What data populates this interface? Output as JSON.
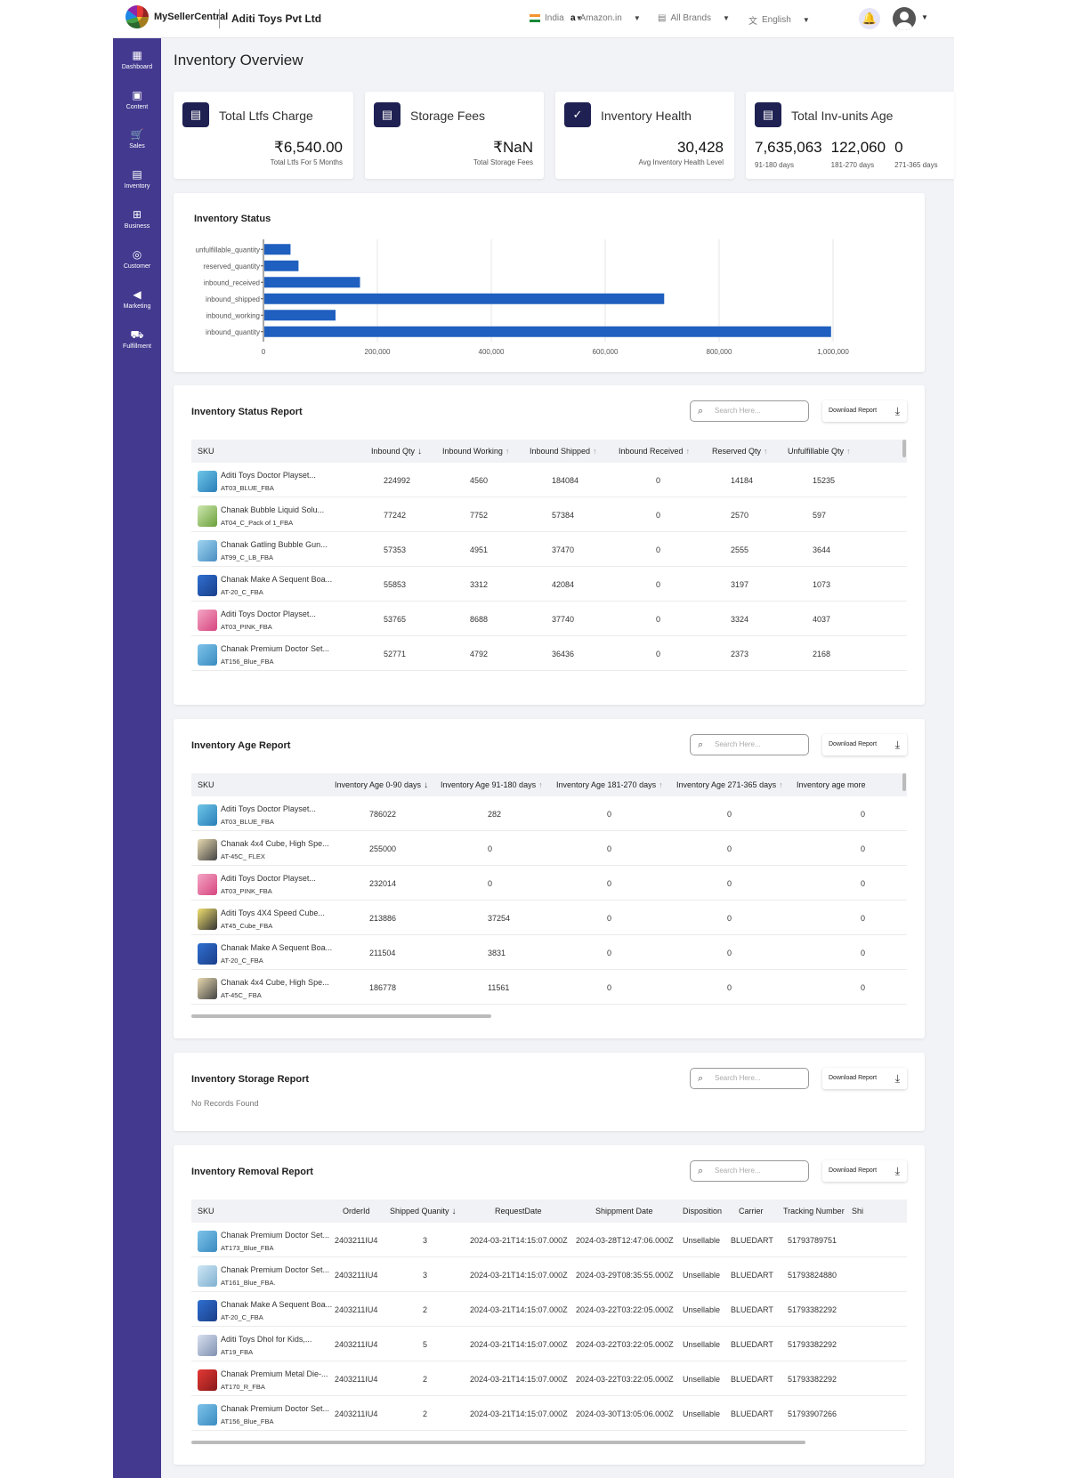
{
  "header": {
    "logo_text": "MySellerCentral",
    "company": "Aditi Toys Pvt Ltd",
    "country": "India",
    "marketplace": "Amazon.in",
    "brands": "All Brands",
    "language": "English"
  },
  "sidebar": {
    "items": [
      {
        "label": "Dashboard",
        "icon": "dashboard-icon"
      },
      {
        "label": "Content",
        "icon": "content-icon"
      },
      {
        "label": "Sales",
        "icon": "cart-icon"
      },
      {
        "label": "Inventory",
        "icon": "inventory-icon"
      },
      {
        "label": "Business",
        "icon": "business-icon"
      },
      {
        "label": "Customer",
        "icon": "customer-icon"
      },
      {
        "label": "Marketing",
        "icon": "megaphone-icon"
      },
      {
        "label": "Fulfillment",
        "icon": "truck-icon"
      }
    ]
  },
  "page_title": "Inventory Overview",
  "kpis": {
    "ltfs": {
      "title": "Total Ltfs Charge",
      "value": "₹6,540.00",
      "sub": "Total Ltfs For 5 Months"
    },
    "storage": {
      "title": "Storage Fees",
      "value": "₹NaN",
      "sub": "Total Storage Fees"
    },
    "health": {
      "title": "Inventory Health",
      "value": "30,428",
      "sub": "Avg Inventory Health Level"
    },
    "age": {
      "title": "Total Inv-units Age",
      "cols": [
        {
          "value": "7,635,063",
          "sub": "91-180 days"
        },
        {
          "value": "122,060",
          "sub": "181-270 days"
        },
        {
          "value": "0",
          "sub": "271-365 days"
        }
      ]
    }
  },
  "chart_data": {
    "type": "bar",
    "orientation": "horizontal",
    "title": "Inventory Status",
    "categories": [
      "unfulfillable_quantity",
      "reserved_quantity",
      "inbound_received",
      "inbound_shipped",
      "inbound_working",
      "inbound_quantity"
    ],
    "values": [
      46000,
      60000,
      168000,
      702000,
      125000,
      995000
    ],
    "xlim": [
      0,
      1000000
    ],
    "xticks": [
      "0",
      "200,000",
      "400,000",
      "600,000",
      "800,000",
      "1,000,000"
    ],
    "grid": true,
    "color": "#1f5fbf"
  },
  "search_placeholder": "Search Here...",
  "download_label": "Download Report",
  "status_report": {
    "title": "Inventory Status Report",
    "columns": [
      "SKU",
      "Inbound Qty",
      "Inbound Working",
      "Inbound Shipped",
      "Inbound Received",
      "Reserved Qty",
      "Unfulfillable Qty"
    ],
    "rows": [
      {
        "name": "Aditi Toys Doctor Playset...",
        "sku": "AT03_BLUE_FBA",
        "vals": [
          "224992",
          "4560",
          "184084",
          "0",
          "14184",
          "15235"
        ]
      },
      {
        "name": "Chanak Bubble Liquid Solu...",
        "sku": "AT04_C_Pack of 1_FBA",
        "vals": [
          "77242",
          "7752",
          "57384",
          "0",
          "2570",
          "597"
        ]
      },
      {
        "name": "Chanak Gatling Bubble Gun...",
        "sku": "AT99_C_LB_FBA",
        "vals": [
          "57353",
          "4951",
          "37470",
          "0",
          "2555",
          "3644"
        ]
      },
      {
        "name": "Chanak Make A Sequent Boa...",
        "sku": "AT-20_C_FBA",
        "vals": [
          "55853",
          "3312",
          "42084",
          "0",
          "3197",
          "1073"
        ]
      },
      {
        "name": "Aditi Toys Doctor Playset...",
        "sku": "AT03_PINK_FBA",
        "vals": [
          "53765",
          "8688",
          "37740",
          "0",
          "3324",
          "4037"
        ]
      },
      {
        "name": "Chanak Premium Doctor Set...",
        "sku": "AT156_Blue_FBA",
        "vals": [
          "52771",
          "4792",
          "36436",
          "0",
          "2373",
          "2168"
        ]
      }
    ]
  },
  "age_report": {
    "title": "Inventory Age Report",
    "columns": [
      "SKU",
      "Inventory Age 0-90 days",
      "Inventory Age 91-180 days",
      "Inventory Age 181-270 days",
      "Inventory Age 271-365 days",
      "Inventory age more"
    ],
    "rows": [
      {
        "name": "Aditi Toys Doctor Playset...",
        "sku": "AT03_BLUE_FBA",
        "vals": [
          "786022",
          "282",
          "0",
          "0",
          "0"
        ]
      },
      {
        "name": "Chanak 4x4 Cube, High Spe...",
        "sku": "AT-45C_ FLEX",
        "vals": [
          "255000",
          "0",
          "0",
          "0",
          "0"
        ]
      },
      {
        "name": "Aditi Toys Doctor Playset...",
        "sku": "AT03_PINK_FBA",
        "vals": [
          "232014",
          "0",
          "0",
          "0",
          "0"
        ]
      },
      {
        "name": "Aditi Toys 4X4 Speed Cube...",
        "sku": "AT45_Cube_FBA",
        "vals": [
          "213886",
          "37254",
          "0",
          "0",
          "0"
        ]
      },
      {
        "name": "Chanak Make A Sequent Boa...",
        "sku": "AT-20_C_FBA",
        "vals": [
          "211504",
          "3831",
          "0",
          "0",
          "0"
        ]
      },
      {
        "name": "Chanak 4x4 Cube, High Spe...",
        "sku": "AT-45C_ FBA",
        "vals": [
          "186778",
          "11561",
          "0",
          "0",
          "0"
        ]
      }
    ]
  },
  "storage_report": {
    "title": "Inventory Storage Report",
    "empty": "No Records Found"
  },
  "removal_report": {
    "title": "Inventory Removal Report",
    "columns": [
      "SKU",
      "OrderId",
      "Shipped Quanity",
      "RequestDate",
      "Shippment Date",
      "Disposition",
      "Carrier",
      "Tracking Number",
      "Shi"
    ],
    "rows": [
      {
        "name": "Chanak Premium Doctor Set...",
        "sku": "AT173_Blue_FBA",
        "vals": [
          "2403211IU4",
          "3",
          "2024-03-21T14:15:07.000Z",
          "2024-03-28T12:47:06.000Z",
          "Unsellable",
          "BLUEDART",
          "51793789751"
        ]
      },
      {
        "name": "Chanak Premium Doctor Set...",
        "sku": "AT161_Blue_FBA.",
        "vals": [
          "2403211IU4",
          "3",
          "2024-03-21T14:15:07.000Z",
          "2024-03-29T08:35:55.000Z",
          "Unsellable",
          "BLUEDART",
          "51793824880"
        ]
      },
      {
        "name": "Chanak Make A Sequent Boa...",
        "sku": "AT-20_C_FBA",
        "vals": [
          "2403211IU4",
          "2",
          "2024-03-21T14:15:07.000Z",
          "2024-03-22T03:22:05.000Z",
          "Unsellable",
          "BLUEDART",
          "51793382292"
        ]
      },
      {
        "name": "Aditi Toys Dhol for Kids,...",
        "sku": "AT19_FBA",
        "vals": [
          "2403211IU4",
          "5",
          "2024-03-21T14:15:07.000Z",
          "2024-03-22T03:22:05.000Z",
          "Unsellable",
          "BLUEDART",
          "51793382292"
        ]
      },
      {
        "name": "Chanak Premium Metal Die-...",
        "sku": "AT170_R_FBA",
        "vals": [
          "2403211IU4",
          "2",
          "2024-03-21T14:15:07.000Z",
          "2024-03-22T03:22:05.000Z",
          "Unsellable",
          "BLUEDART",
          "51793382292"
        ]
      },
      {
        "name": "Chanak Premium Doctor Set...",
        "sku": "AT156_Blue_FBA",
        "vals": [
          "2403211IU4",
          "2",
          "2024-03-21T14:15:07.000Z",
          "2024-03-30T13:05:06.000Z",
          "Unsellable",
          "BLUEDART",
          "51793907266"
        ]
      }
    ]
  }
}
